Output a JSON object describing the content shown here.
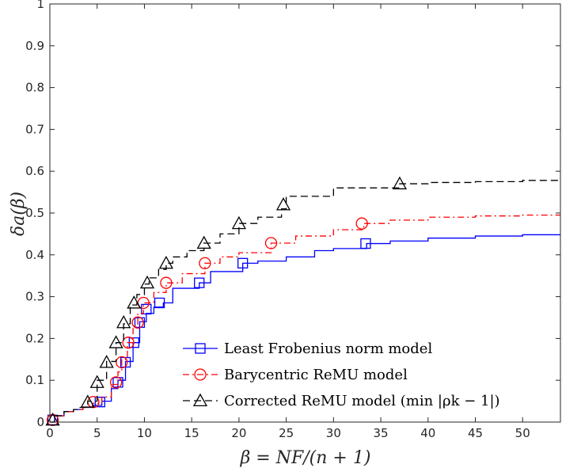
{
  "chart_data": {
    "type": "line",
    "title": "",
    "xlabel": "β = NF/(n + 1)",
    "ylabel": "δa(β)",
    "xlim": [
      0,
      54
    ],
    "ylim": [
      0,
      1
    ],
    "xticks": [
      "0",
      "5",
      "10",
      "15",
      "20",
      "25",
      "30",
      "35",
      "40",
      "45",
      "50"
    ],
    "yticks": [
      "0",
      "0.1",
      "0.2",
      "0.3",
      "0.4",
      "0.5",
      "0.6",
      "0.7",
      "0.8",
      "0.9",
      "1"
    ],
    "legend_position": "bottom-right",
    "series": [
      {
        "name": "Least Frobenius norm model",
        "color": "#0000ff",
        "dash": "solid",
        "marker": "square",
        "x": [
          0,
          0.5,
          1.5,
          2.5,
          3.5,
          4.5,
          5.5,
          6.5,
          7.2,
          8.0,
          8.8,
          9.5,
          10.2,
          11.0,
          12.0,
          13.0,
          15.8,
          17.0,
          20.4,
          22.0,
          25.0,
          28.0,
          30.0,
          33.5,
          36.0,
          40.0,
          45.0,
          50.0,
          54.0
        ],
        "y": [
          0,
          0.015,
          0.025,
          0.03,
          0.035,
          0.04,
          0.05,
          0.08,
          0.1,
          0.145,
          0.19,
          0.24,
          0.26,
          0.275,
          0.285,
          0.32,
          0.333,
          0.36,
          0.38,
          0.385,
          0.395,
          0.41,
          0.415,
          0.427,
          0.433,
          0.44,
          0.445,
          0.448,
          0.448
        ],
        "marker_points": [
          [
            0.3,
            0.005
          ],
          [
            5.3,
            0.048
          ],
          [
            7.2,
            0.095
          ],
          [
            8.0,
            0.143
          ],
          [
            8.9,
            0.19
          ],
          [
            9.5,
            0.238
          ],
          [
            10.2,
            0.27
          ],
          [
            11.6,
            0.285
          ],
          [
            15.8,
            0.333
          ],
          [
            20.4,
            0.38
          ],
          [
            33.4,
            0.427
          ]
        ]
      },
      {
        "name": "Barycentric ReMU model",
        "color": "#ff0000",
        "dash": "dashdot",
        "marker": "circle",
        "x": [
          0,
          0.5,
          1.5,
          2.5,
          3.5,
          4.5,
          5.5,
          6.5,
          7.2,
          7.6,
          8.2,
          8.8,
          9.3,
          9.9,
          11.0,
          12.3,
          14.0,
          16.4,
          18.0,
          20.0,
          23.4,
          26.0,
          30.0,
          33.2,
          36.0,
          40.0,
          45.0,
          50.0,
          54.0
        ],
        "y": [
          0,
          0.015,
          0.025,
          0.03,
          0.035,
          0.045,
          0.06,
          0.09,
          0.12,
          0.15,
          0.19,
          0.23,
          0.26,
          0.285,
          0.31,
          0.333,
          0.355,
          0.38,
          0.395,
          0.405,
          0.428,
          0.445,
          0.46,
          0.475,
          0.483,
          0.49,
          0.493,
          0.495,
          0.495
        ],
        "marker_points": [
          [
            0.3,
            0.005
          ],
          [
            4.6,
            0.048
          ],
          [
            7.0,
            0.095
          ],
          [
            7.6,
            0.143
          ],
          [
            8.3,
            0.19
          ],
          [
            9.3,
            0.238
          ],
          [
            9.9,
            0.285
          ],
          [
            12.3,
            0.333
          ],
          [
            16.4,
            0.38
          ],
          [
            23.4,
            0.428
          ],
          [
            33.0,
            0.475
          ]
        ]
      },
      {
        "name": "Corrected ReMU model (min |ρk − 1|)",
        "color": "#000000",
        "dash": "dashed",
        "marker": "triangle",
        "x": [
          0,
          0.5,
          1.5,
          2.5,
          3.0,
          4.0,
          5.0,
          6.0,
          7.0,
          7.8,
          8.5,
          9.2,
          10.0,
          10.5,
          11.5,
          12.3,
          13.0,
          14.5,
          16.3,
          18.0,
          20.0,
          22.0,
          24.5,
          25.0,
          30.0,
          37.0,
          40.0,
          45.0,
          50.0,
          54.0
        ],
        "y": [
          0,
          0.015,
          0.025,
          0.03,
          0.035,
          0.05,
          0.1,
          0.145,
          0.19,
          0.235,
          0.28,
          0.305,
          0.33,
          0.345,
          0.365,
          0.38,
          0.395,
          0.41,
          0.428,
          0.45,
          0.475,
          0.49,
          0.51,
          0.54,
          0.56,
          0.57,
          0.573,
          0.575,
          0.578,
          0.578
        ],
        "marker_points": [
          [
            0.3,
            0.005
          ],
          [
            4.0,
            0.048
          ],
          [
            5.0,
            0.095
          ],
          [
            6.0,
            0.143
          ],
          [
            7.0,
            0.19
          ],
          [
            7.8,
            0.238
          ],
          [
            8.9,
            0.285
          ],
          [
            10.3,
            0.333
          ],
          [
            12.3,
            0.38
          ],
          [
            16.3,
            0.428
          ],
          [
            20.0,
            0.475
          ],
          [
            24.7,
            0.52
          ],
          [
            37.0,
            0.57
          ]
        ]
      }
    ]
  }
}
